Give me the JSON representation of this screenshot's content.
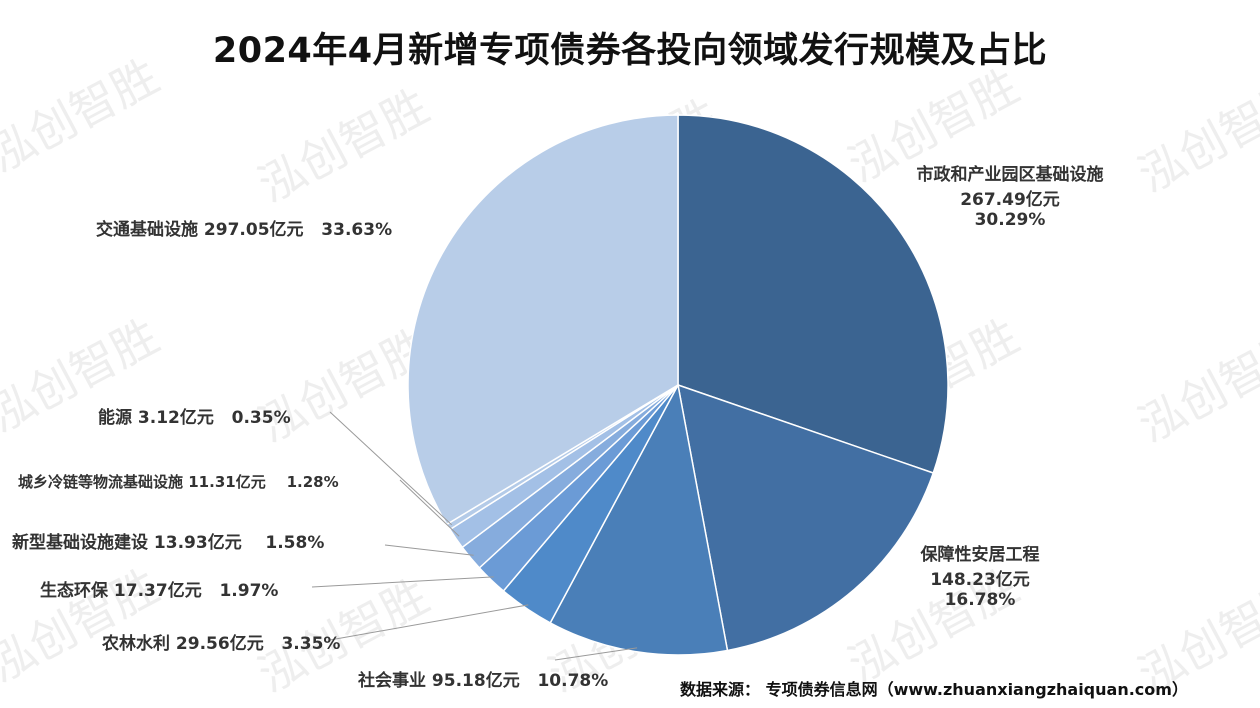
{
  "title": "2024年4月新增专项债券各投向领域发行规模及占比",
  "watermark": "泓创智胜",
  "source": "数据来源：  专项债券信息网（www.zhuanxiangzhaiquan.com）",
  "chart_data": {
    "type": "pie",
    "title": "2024年4月新增专项债券各投向领域发行规模及占比",
    "unit": "亿元",
    "slices": [
      {
        "name": "市政和产业园区基础设施",
        "value": 267.49,
        "value_text": "267.49亿元",
        "percent": 30.29,
        "percent_text": "30.29%",
        "color": "#3b6491"
      },
      {
        "name": "保障性安居工程",
        "value": 148.23,
        "value_text": "148.23亿元",
        "percent": 16.78,
        "percent_text": "16.78%",
        "color": "#426fa3"
      },
      {
        "name": "社会事业",
        "value": 95.18,
        "value_text": "95.18亿元",
        "percent": 10.78,
        "percent_text": "10.78%",
        "color": "#4a7fb8"
      },
      {
        "name": "农林水利",
        "value": 29.56,
        "value_text": "29.56亿元",
        "percent": 3.35,
        "percent_text": "3.35%",
        "color": "#4f8ac9"
      },
      {
        "name": "生态环保",
        "value": 17.37,
        "value_text": "17.37亿元",
        "percent": 1.97,
        "percent_text": "1.97%",
        "color": "#6b9bd6"
      },
      {
        "name": "新型基础设施建设",
        "value": 13.93,
        "value_text": "13.93亿元",
        "percent": 1.58,
        "percent_text": "1.58%",
        "color": "#86acdd"
      },
      {
        "name": "城乡冷链等物流基础设施",
        "value": 11.31,
        "value_text": "11.31亿元",
        "percent": 1.28,
        "percent_text": "1.28%",
        "color": "#a3c0e6"
      },
      {
        "name": "能源",
        "value": 3.12,
        "value_text": "3.12亿元",
        "percent": 0.35,
        "percent_text": "0.35%",
        "color": "#b4cbe8"
      },
      {
        "name": "交通基础设施",
        "value": 297.05,
        "value_text": "297.05亿元",
        "percent": 33.63,
        "percent_text": "33.63%",
        "color": "#b8cde8"
      }
    ]
  }
}
